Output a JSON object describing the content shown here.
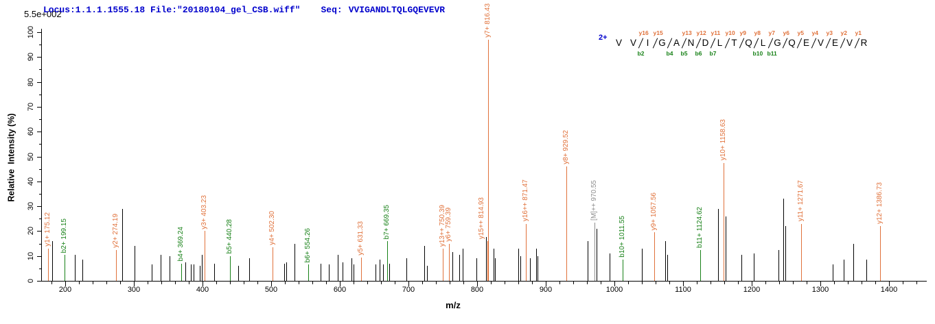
{
  "header": {
    "locus_file": "Locus:1.1.1.1555.18 File:\"20180104_gel_CSB.wiff\"",
    "seq_label": "Seq:",
    "seq_value": "VVIGANDLTQLGQEVEVR",
    "max_intensity_label": "5.5e+002"
  },
  "colors": {
    "y_ion": "#e0713a",
    "b_ion": "#168016",
    "precursor": "#8c8c8c",
    "peak_default": "#000000",
    "header_text": "#0000cc",
    "charge_text": "#0000cc",
    "axis": "#000000"
  },
  "peptide_panel": {
    "charge_label": "2+",
    "residues": [
      "V",
      "V",
      "I",
      "G",
      "A",
      "N",
      "D",
      "L",
      "T",
      "Q",
      "L",
      "G",
      "Q",
      "E",
      "V",
      "E",
      "V",
      "R"
    ],
    "cleavages": [
      {
        "after": 2,
        "y": "y16",
        "b": "b2"
      },
      {
        "after": 3,
        "y": "y15",
        "b": ""
      },
      {
        "after": 4,
        "y": "",
        "b": "b4"
      },
      {
        "after": 5,
        "y": "y13",
        "b": "b5"
      },
      {
        "after": 6,
        "y": "y12",
        "b": "b6"
      },
      {
        "after": 7,
        "y": "y11",
        "b": "b7"
      },
      {
        "after": 8,
        "y": "y10",
        "b": ""
      },
      {
        "after": 9,
        "y": "y9",
        "b": ""
      },
      {
        "after": 10,
        "y": "y8",
        "b": "b10"
      },
      {
        "after": 11,
        "y": "y7",
        "b": "b11"
      },
      {
        "after": 12,
        "y": "y6",
        "b": ""
      },
      {
        "after": 13,
        "y": "y5",
        "b": ""
      },
      {
        "after": 14,
        "y": "y4",
        "b": ""
      },
      {
        "after": 15,
        "y": "y3",
        "b": ""
      },
      {
        "after": 16,
        "y": "y2",
        "b": ""
      },
      {
        "after": 17,
        "y": "y1",
        "b": ""
      }
    ]
  },
  "chart_data": {
    "type": "bar",
    "subtype": "ms2-fragment-spectrum",
    "xlabel": "m/z",
    "ylabel": "Relative  Intensity (%)",
    "x_range": [
      165,
      1455
    ],
    "y_range": [
      0,
      100
    ],
    "x_major_ticks": [
      200,
      300,
      400,
      500,
      600,
      700,
      800,
      900,
      1000,
      1100,
      1200,
      1300,
      1400
    ],
    "x_minor_step": 20,
    "y_major_ticks": [
      0,
      10,
      20,
      30,
      40,
      50,
      60,
      70,
      80,
      90,
      100
    ],
    "y_minor_step": 5,
    "grid": false,
    "legend": false,
    "peaks": [
      {
        "mz": 175.12,
        "pct": 13,
        "type": "y",
        "label": "y1+ 175.12"
      },
      {
        "mz": 181,
        "pct": 16,
        "type": "x"
      },
      {
        "mz": 199.15,
        "pct": 10.5,
        "type": "b",
        "label": "b2+ 199.15"
      },
      {
        "mz": 214,
        "pct": 10.5,
        "type": "x"
      },
      {
        "mz": 225,
        "pct": 8.5,
        "type": "x"
      },
      {
        "mz": 274.19,
        "pct": 12.5,
        "type": "y",
        "label": "y2+ 274.19"
      },
      {
        "mz": 283,
        "pct": 29,
        "type": "x"
      },
      {
        "mz": 301,
        "pct": 14,
        "type": "x"
      },
      {
        "mz": 326,
        "pct": 6.5,
        "type": "x"
      },
      {
        "mz": 339,
        "pct": 10.5,
        "type": "x"
      },
      {
        "mz": 352,
        "pct": 10,
        "type": "x"
      },
      {
        "mz": 369.24,
        "pct": 7,
        "type": "b",
        "label": "b4+ 369.24"
      },
      {
        "mz": 375,
        "pct": 7.5,
        "type": "x"
      },
      {
        "mz": 383,
        "pct": 6.5,
        "type": "x"
      },
      {
        "mz": 387,
        "pct": 6.5,
        "type": "x"
      },
      {
        "mz": 396,
        "pct": 6,
        "type": "x"
      },
      {
        "mz": 399,
        "pct": 10.5,
        "type": "x"
      },
      {
        "mz": 403.23,
        "pct": 20,
        "type": "y",
        "label": "y3+ 403.23"
      },
      {
        "mz": 417,
        "pct": 7,
        "type": "x"
      },
      {
        "mz": 440.28,
        "pct": 10,
        "type": "b",
        "label": "b5+ 440.28"
      },
      {
        "mz": 452,
        "pct": 6,
        "type": "x"
      },
      {
        "mz": 468,
        "pct": 9,
        "type": "x"
      },
      {
        "mz": 502.3,
        "pct": 13.5,
        "type": "y",
        "label": "y4+ 502.30"
      },
      {
        "mz": 519,
        "pct": 7,
        "type": "x"
      },
      {
        "mz": 522,
        "pct": 7.5,
        "type": "x"
      },
      {
        "mz": 534,
        "pct": 15,
        "type": "x"
      },
      {
        "mz": 554.26,
        "pct": 6.5,
        "type": "b",
        "label": "b6+ 554.26"
      },
      {
        "mz": 572,
        "pct": 7,
        "type": "x"
      },
      {
        "mz": 584,
        "pct": 6.5,
        "type": "x"
      },
      {
        "mz": 597,
        "pct": 10.5,
        "type": "x"
      },
      {
        "mz": 604,
        "pct": 7.5,
        "type": "x"
      },
      {
        "mz": 617,
        "pct": 9,
        "type": "x"
      },
      {
        "mz": 620,
        "pct": 6.5,
        "type": "x"
      },
      {
        "mz": 631.33,
        "pct": 9.5,
        "type": "y",
        "label": "y5+ 631.33"
      },
      {
        "mz": 652,
        "pct": 6.5,
        "type": "x"
      },
      {
        "mz": 658,
        "pct": 8.5,
        "type": "x"
      },
      {
        "mz": 663,
        "pct": 6.5,
        "type": "x"
      },
      {
        "mz": 669.35,
        "pct": 16,
        "type": "b",
        "label": "b7+ 669.35"
      },
      {
        "mz": 672,
        "pct": 7,
        "type": "x"
      },
      {
        "mz": 697,
        "pct": 9,
        "type": "x"
      },
      {
        "mz": 723,
        "pct": 14,
        "type": "x"
      },
      {
        "mz": 727,
        "pct": 6,
        "type": "x"
      },
      {
        "mz": 750.39,
        "pct": 13,
        "type": "y",
        "label": "y13++ 750.39"
      },
      {
        "mz": 759.39,
        "pct": 15,
        "type": "y",
        "label": "y6+ 759.39"
      },
      {
        "mz": 764,
        "pct": 11.5,
        "type": "x"
      },
      {
        "mz": 774,
        "pct": 10.5,
        "type": "x"
      },
      {
        "mz": 779,
        "pct": 13,
        "type": "x"
      },
      {
        "mz": 799,
        "pct": 9,
        "type": "x"
      },
      {
        "mz": 813,
        "pct": 17.5,
        "type": "x"
      },
      {
        "mz": 814.93,
        "pct": 16,
        "type": "y",
        "label": "y15++ 814.93",
        "label_dx": -8
      },
      {
        "mz": 816.43,
        "pct": 97,
        "type": "y",
        "label": "y7+ 816.43"
      },
      {
        "mz": 824,
        "pct": 13,
        "type": "x"
      },
      {
        "mz": 826,
        "pct": 9,
        "type": "x"
      },
      {
        "mz": 860,
        "pct": 13,
        "type": "x"
      },
      {
        "mz": 863,
        "pct": 10,
        "type": "x"
      },
      {
        "mz": 871.47,
        "pct": 23,
        "type": "y",
        "label": "y16++ 871.47"
      },
      {
        "mz": 877,
        "pct": 9,
        "type": "x"
      },
      {
        "mz": 886,
        "pct": 13,
        "type": "x"
      },
      {
        "mz": 888,
        "pct": 10,
        "type": "x"
      },
      {
        "mz": 929.52,
        "pct": 46,
        "type": "y",
        "label": "y8+ 929.52"
      },
      {
        "mz": 961,
        "pct": 16,
        "type": "x"
      },
      {
        "mz": 970.55,
        "pct": 23.5,
        "type": "M",
        "label": "[M]++ 970.55"
      },
      {
        "mz": 974,
        "pct": 21,
        "type": "x"
      },
      {
        "mz": 993,
        "pct": 11,
        "type": "x"
      },
      {
        "mz": 1011.55,
        "pct": 8.5,
        "type": "b",
        "label": "b10+ 1011.55"
      },
      {
        "mz": 1040,
        "pct": 13,
        "type": "x"
      },
      {
        "mz": 1057.56,
        "pct": 19.5,
        "type": "y",
        "label": "y9+ 1057.56"
      },
      {
        "mz": 1074,
        "pct": 16,
        "type": "x"
      },
      {
        "mz": 1077,
        "pct": 10.5,
        "type": "x"
      },
      {
        "mz": 1124.62,
        "pct": 12.5,
        "type": "b",
        "label": "b11+ 1124.62"
      },
      {
        "mz": 1151,
        "pct": 29,
        "type": "x"
      },
      {
        "mz": 1158.63,
        "pct": 47.5,
        "type": "y",
        "label": "y10+ 1158.63"
      },
      {
        "mz": 1162,
        "pct": 26,
        "type": "x"
      },
      {
        "mz": 1185,
        "pct": 10.5,
        "type": "x"
      },
      {
        "mz": 1203,
        "pct": 11,
        "type": "x"
      },
      {
        "mz": 1239,
        "pct": 12.5,
        "type": "x"
      },
      {
        "mz": 1246,
        "pct": 33,
        "type": "x"
      },
      {
        "mz": 1249,
        "pct": 22,
        "type": "x"
      },
      {
        "mz": 1271.67,
        "pct": 23,
        "type": "y",
        "label": "y11+ 1271.67"
      },
      {
        "mz": 1318,
        "pct": 6.5,
        "type": "x"
      },
      {
        "mz": 1334,
        "pct": 8.5,
        "type": "x"
      },
      {
        "mz": 1348,
        "pct": 15,
        "type": "x"
      },
      {
        "mz": 1367,
        "pct": 8.5,
        "type": "x"
      },
      {
        "mz": 1386.73,
        "pct": 22,
        "type": "y",
        "label": "y12+ 1386.73"
      }
    ]
  }
}
